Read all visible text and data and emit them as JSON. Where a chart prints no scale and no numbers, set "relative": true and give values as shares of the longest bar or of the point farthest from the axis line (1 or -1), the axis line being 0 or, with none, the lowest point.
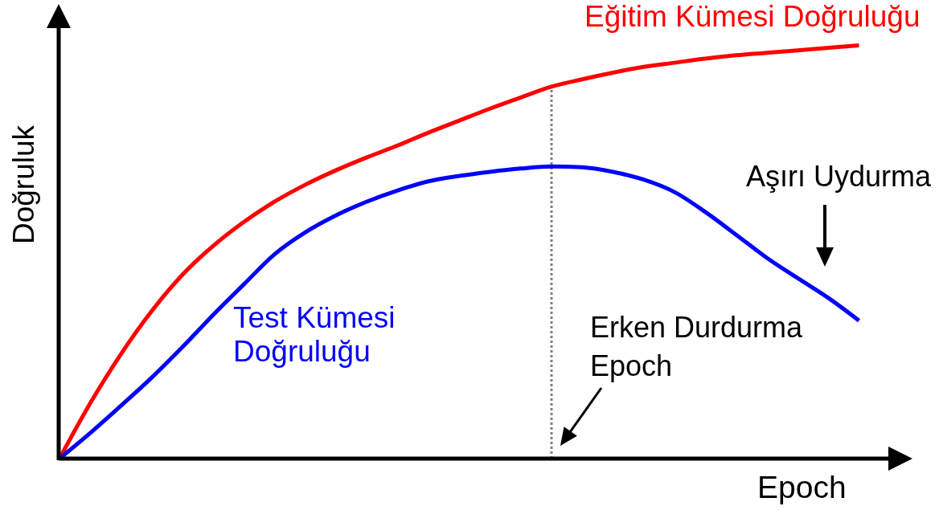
{
  "chart_data": {
    "type": "line",
    "xlabel": "Epoch",
    "ylabel": "Doğruluk",
    "relative": true,
    "categories": [
      null,
      null,
      null,
      null,
      null,
      null,
      null,
      null,
      null,
      null,
      null,
      null,
      null,
      null,
      null,
      null,
      null,
      null,
      null,
      null,
      null,
      null,
      null,
      null,
      null,
      null,
      null
    ],
    "series": [
      {
        "name": "Eğitim Kümesi Doğruluğu",
        "color": "#ff0000",
        "values": [
          0,
          0.134,
          0.253,
          0.357,
          0.445,
          0.515,
          0.573,
          0.622,
          0.663,
          0.698,
          0.729,
          0.758,
          0.789,
          0.818,
          0.847,
          0.874,
          0.9,
          0.918,
          0.934,
          0.948,
          0.958,
          0.968,
          0.976,
          0.982,
          0.988,
          0.994,
          1
        ]
      },
      {
        "name": "Test Kümesi Doğruluğu",
        "color": "#0000ff",
        "values": [
          0,
          0.062,
          0.128,
          0.196,
          0.27,
          0.348,
          0.422,
          0.495,
          0.548,
          0.589,
          0.622,
          0.649,
          0.671,
          0.684,
          0.694,
          0.702,
          0.707,
          0.705,
          0.694,
          0.675,
          0.645,
          0.597,
          0.542,
          0.486,
          0.437,
          0.389,
          0.334
        ]
      }
    ],
    "annotations": [
      "Aşırı Uydurma",
      "Erken Durdurma Epoch"
    ]
  }
}
